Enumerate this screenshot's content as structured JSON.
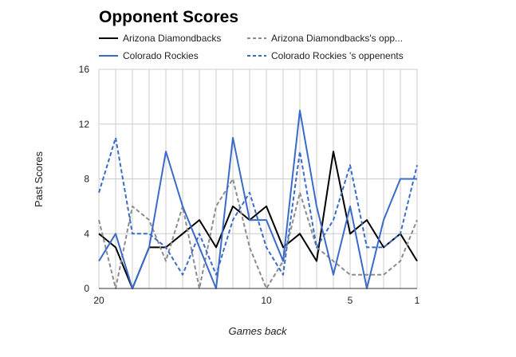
{
  "chart_data": {
    "type": "line",
    "title": "Opponent Scores",
    "xlabel": "Games back",
    "ylabel": "Past Scores",
    "x": [
      20,
      19,
      18,
      17,
      16,
      15,
      14,
      13,
      12,
      11,
      10,
      9,
      8,
      7,
      6,
      5,
      4,
      3,
      2,
      1
    ],
    "x_direction": "reversed",
    "xlim": [
      20,
      1
    ],
    "ylim": [
      0,
      16
    ],
    "yticks": [
      "0",
      "4",
      "8",
      "12",
      "16"
    ],
    "xticks": [
      "20",
      "10",
      "5",
      "1"
    ],
    "grid": true,
    "legend": "top",
    "series": [
      {
        "name": "Arizona Diamondbacks",
        "color": "#000000",
        "dash": "solid",
        "values": [
          4,
          3,
          0,
          3,
          3,
          4,
          5,
          3,
          6,
          5,
          6,
          3,
          4,
          2,
          10,
          4,
          5,
          3,
          4,
          2
        ]
      },
      {
        "name": "Arizona Diamondbacks's opp...",
        "color": "#8c8c8c",
        "dash": "dashed",
        "values": [
          5,
          0,
          6,
          5,
          2,
          6,
          0,
          6,
          8,
          3,
          0,
          2,
          7,
          3,
          2,
          1,
          1,
          1,
          2,
          5
        ]
      },
      {
        "name": "Colorado Rockies",
        "color": "#3a6bc9",
        "dash": "solid",
        "values": [
          2,
          4,
          0,
          3,
          10,
          6,
          3,
          0,
          11,
          5,
          5,
          2,
          13,
          6,
          1,
          6,
          0,
          5,
          8,
          8
        ]
      },
      {
        "name": "Colorado Rockies 's oppenents",
        "color": "#3a6bc9",
        "dash": "dashed",
        "values": [
          7,
          11,
          4,
          4,
          3,
          1,
          4,
          1,
          5,
          7,
          3,
          1,
          10,
          3,
          5,
          9,
          3,
          3,
          4,
          9
        ]
      }
    ]
  }
}
